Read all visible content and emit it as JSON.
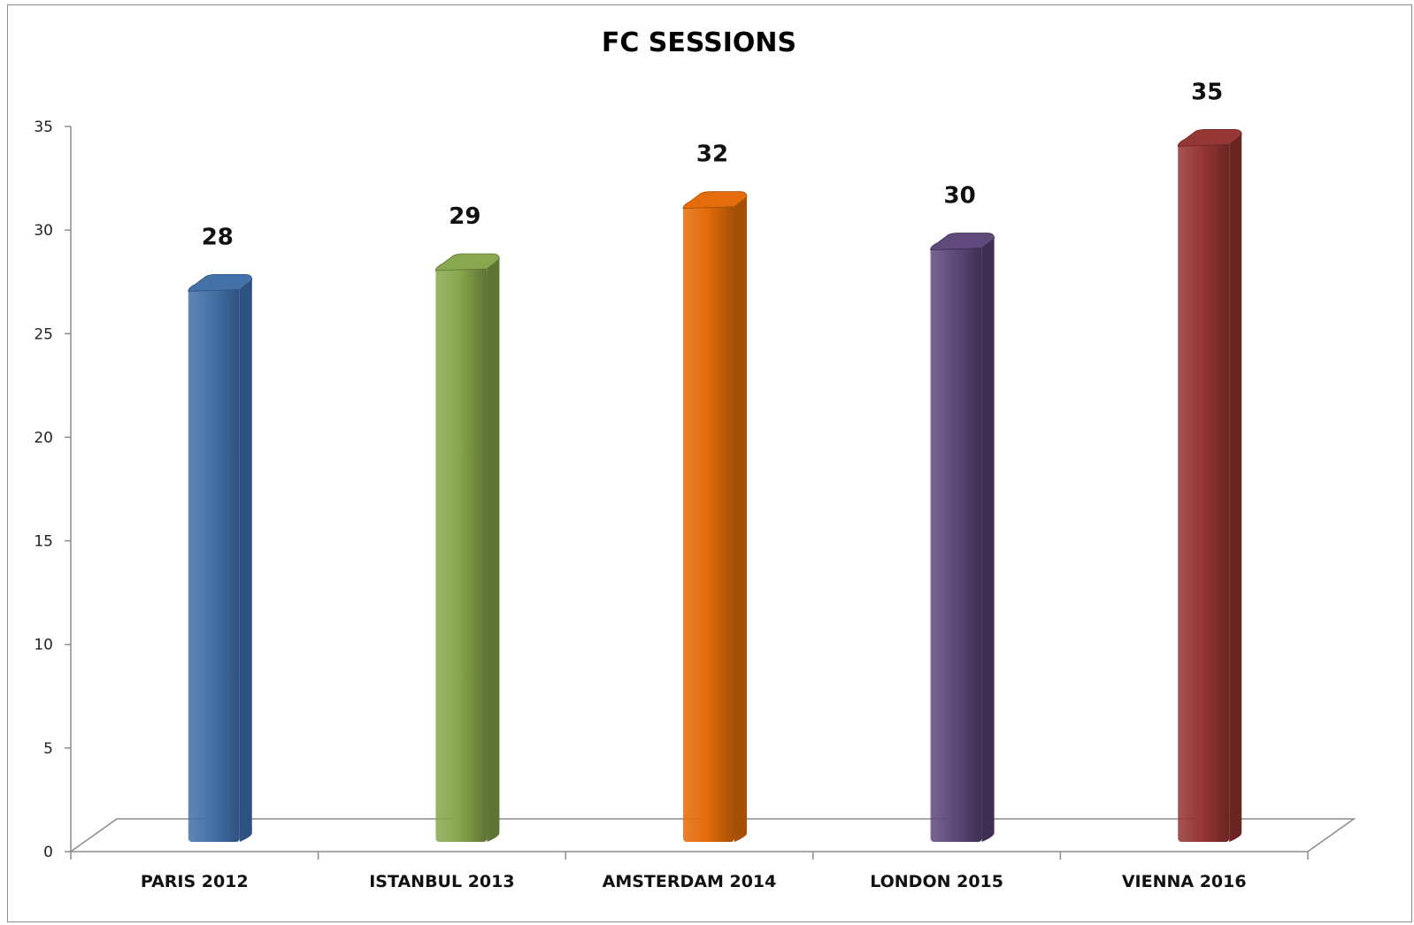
{
  "chart_data": {
    "type": "bar",
    "title": "FC SESSIONS",
    "xlabel": "",
    "ylabel": "",
    "categories": [
      "PARIS 2012",
      "ISTANBUL 2013",
      "AMSTERDAM 2014",
      "LONDON 2015",
      "VIENNA 2016"
    ],
    "values": [
      28,
      29,
      32,
      30,
      35
    ],
    "data_labels": [
      "28",
      "29",
      "32",
      "30",
      "35"
    ],
    "colors": [
      "#4472A8",
      "#89A74E",
      "#E46C0A",
      "#604A7B",
      "#953735"
    ],
    "side_colors": [
      "#2E5280",
      "#5E7434",
      "#A64F06",
      "#3E2F52",
      "#6A2523"
    ],
    "ylim": [
      0,
      35
    ],
    "yticks": [
      "0",
      "5",
      "10",
      "15",
      "20",
      "25",
      "30",
      "35"
    ],
    "grid": false,
    "legend": "none",
    "style": "3d-column"
  }
}
